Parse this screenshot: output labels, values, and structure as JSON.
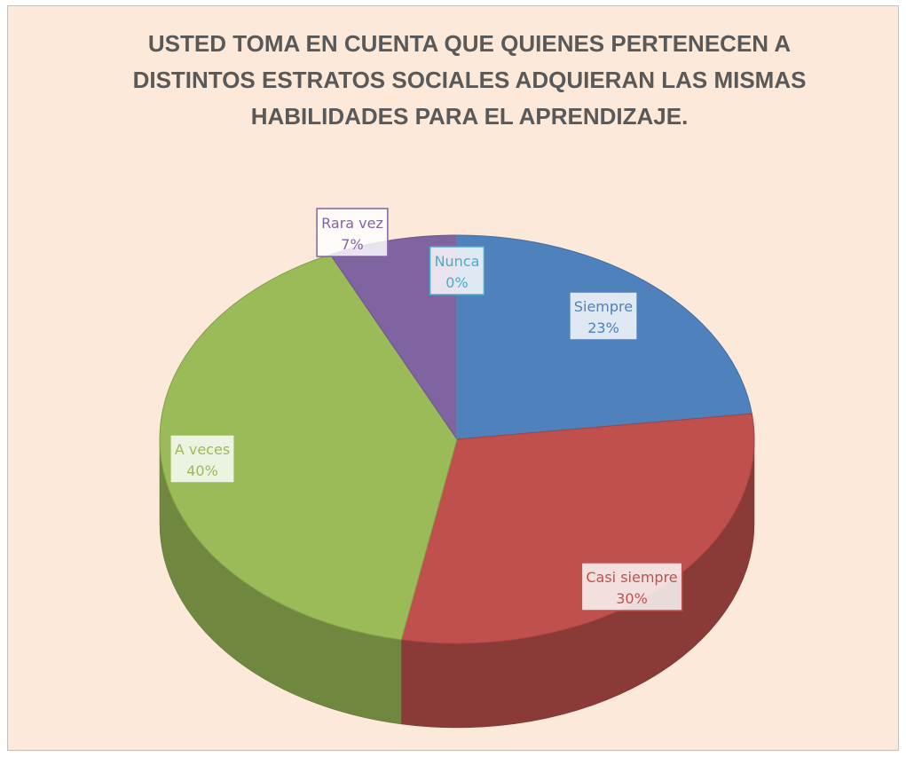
{
  "chart_data": {
    "type": "pie",
    "title": "USTED TOMA EN CUENTA QUE QUIENES PERTENECEN A DISTINTOS ESTRATOS SOCIALES ADQUIERAN LAS MISMAS HABILIDADES PARA EL APRENDIZAJE.",
    "categories": [
      "Siempre",
      "Casi siempre",
      "A veces",
      "Rara vez",
      "Nunca"
    ],
    "values": [
      23,
      30,
      40,
      7,
      0
    ],
    "value_labels": [
      "23%",
      "30%",
      "40%",
      "7%",
      "0%"
    ],
    "colors": [
      "#4f81bd",
      "#c0504d",
      "#9bbb59",
      "#8064a2",
      "#4bacc6"
    ]
  }
}
